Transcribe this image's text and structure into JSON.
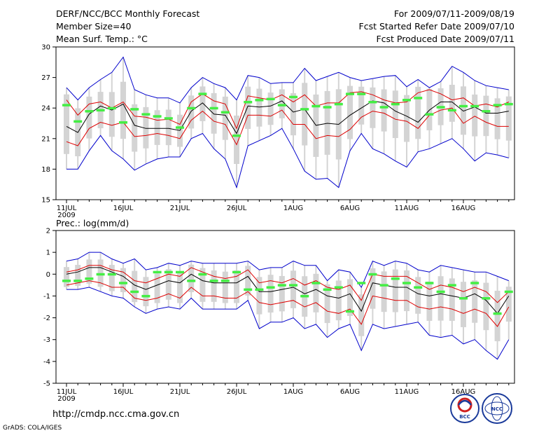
{
  "header": {
    "title": "DERF/NCC/BCC Monthly Forecast",
    "member_size": "Member Size=40",
    "variable_top": "Mean Surf. Temp.: °C",
    "period": "For 2009/07/11-2009/08/19",
    "refer_date": "Fcst Started Refer Date 2009/07/10",
    "produced_date": "Fcst Produced Date 2009/07/11"
  },
  "colors": {
    "envelope": "#0000cc",
    "spread": "#dd0000",
    "mean": "#000000",
    "box": "#d4d4d4",
    "observed": "#44ee44"
  },
  "chart_data": [
    {
      "type": "line",
      "title": "Mean Surf. Temp.: °C",
      "ylim": [
        15,
        30
      ],
      "yticks": [
        "15",
        "18",
        "21",
        "24",
        "27",
        "30"
      ],
      "xtick_labels": [
        "11JUL",
        "16JUL",
        "21JUL",
        "26JUL",
        "1AUG",
        "6AUG",
        "11AUG",
        "16AUG"
      ],
      "year_label": "2009",
      "days": 40,
      "series": [
        {
          "name": "max",
          "values": [
            26.0,
            24.8,
            26.0,
            26.8,
            27.5,
            29.0,
            25.8,
            25.3,
            25.0,
            25.0,
            24.5,
            26.0,
            27.0,
            26.4,
            26.0,
            24.8,
            27.2,
            27.0,
            26.4,
            26.5,
            26.5,
            27.9,
            26.7,
            27.1,
            27.5,
            27.0,
            26.7,
            26.9,
            27.1,
            27.2,
            26.1,
            26.8,
            26.0,
            26.6,
            28.1,
            27.5,
            26.7,
            26.2,
            26.0,
            25.8
          ]
        },
        {
          "name": "upper",
          "values": [
            24.8,
            23.3,
            24.4,
            24.6,
            24.0,
            24.6,
            23.2,
            23.1,
            22.8,
            22.9,
            22.4,
            24.6,
            25.4,
            24.7,
            24.4,
            22.0,
            25.2,
            25.0,
            24.8,
            25.3,
            24.6,
            25.3,
            24.2,
            24.5,
            24.5,
            25.5,
            25.6,
            25.3,
            24.8,
            24.5,
            24.6,
            25.5,
            25.8,
            25.4,
            24.8,
            25.0,
            24.2,
            24.4,
            24.1,
            24.6
          ]
        },
        {
          "name": "mean",
          "values": [
            22.2,
            21.6,
            23.4,
            24.2,
            23.8,
            24.4,
            22.3,
            22.0,
            22.0,
            22.0,
            21.8,
            23.7,
            24.5,
            23.4,
            23.3,
            21.5,
            24.2,
            24.1,
            24.2,
            24.7,
            23.6,
            23.9,
            22.3,
            22.5,
            22.4,
            23.3,
            24.0,
            24.7,
            24.5,
            23.7,
            23.2,
            22.6,
            23.8,
            24.6,
            24.6,
            23.7,
            24.1,
            23.5,
            23.5,
            23.7
          ]
        },
        {
          "name": "lower",
          "values": [
            20.7,
            20.3,
            22.0,
            22.6,
            22.3,
            22.6,
            21.2,
            21.3,
            21.5,
            21.3,
            21.0,
            22.8,
            23.7,
            22.7,
            22.4,
            20.4,
            23.3,
            23.3,
            23.2,
            23.8,
            22.4,
            22.4,
            21.0,
            21.3,
            21.2,
            21.9,
            23.1,
            23.7,
            23.5,
            22.9,
            22.7,
            22.0,
            23.3,
            23.8,
            24.0,
            22.5,
            23.2,
            22.6,
            22.2,
            22.2
          ]
        },
        {
          "name": "min",
          "values": [
            18.0,
            18.0,
            19.8,
            21.3,
            19.8,
            19.0,
            17.9,
            18.5,
            19.0,
            19.2,
            19.2,
            21.0,
            21.5,
            20.0,
            19.0,
            16.2,
            20.3,
            20.8,
            21.3,
            22.0,
            20.0,
            17.8,
            17.0,
            17.1,
            16.2,
            19.8,
            21.5,
            20.0,
            19.5,
            18.8,
            18.2,
            19.7,
            20.0,
            20.5,
            21.0,
            20.0,
            18.8,
            19.6,
            19.4,
            19.1
          ]
        },
        {
          "name": "observed",
          "values": [
            24.3,
            22.7,
            23.7,
            23.8,
            24.0,
            22.6,
            23.9,
            23.4,
            23.2,
            23.0,
            22.1,
            24.0,
            25.4,
            24.0,
            23.6,
            21.3,
            24.6,
            24.8,
            24.9,
            24.3,
            25.1,
            23.9,
            24.2,
            24.1,
            24.4,
            25.4,
            25.4,
            24.6,
            24.1,
            24.4,
            24.8,
            25.0,
            23.4,
            24.1,
            23.8,
            24.2,
            24.2,
            23.7,
            24.3,
            24.4
          ]
        }
      ]
    },
    {
      "type": "line",
      "title": "Prec.: log(mm/d)",
      "ylim": [
        -5,
        2
      ],
      "yticks": [
        "-5",
        "-4",
        "-3",
        "-2",
        "-1",
        "0",
        "1",
        "2"
      ],
      "xtick_labels": [
        "11JUL",
        "16JUL",
        "21JUL",
        "26JUL",
        "1AUG",
        "6AUG",
        "11AUG",
        "16AUG"
      ],
      "year_label": "2009",
      "days": 40,
      "series": [
        {
          "name": "max",
          "values": [
            0.6,
            0.7,
            1.0,
            1.0,
            0.7,
            0.5,
            0.7,
            0.2,
            0.3,
            0.5,
            0.4,
            0.6,
            0.5,
            0.5,
            0.5,
            0.5,
            0.6,
            0.2,
            0.3,
            0.3,
            0.6,
            0.4,
            0.4,
            -0.3,
            0.2,
            0.1,
            -0.6,
            0.6,
            0.4,
            0.6,
            0.5,
            0.2,
            0.1,
            0.4,
            0.3,
            0.2,
            0.1,
            0.1,
            -0.1,
            -0.3
          ]
        },
        {
          "name": "upper",
          "values": [
            0.1,
            0.2,
            0.4,
            0.4,
            0.2,
            0.1,
            -0.3,
            -0.4,
            -0.2,
            0.0,
            -0.1,
            0.3,
            0.1,
            -0.1,
            -0.2,
            -0.1,
            0.2,
            -0.4,
            -0.3,
            -0.4,
            -0.2,
            -0.5,
            -0.3,
            -0.6,
            -0.7,
            -0.5,
            -1.2,
            0.0,
            -0.1,
            -0.1,
            -0.1,
            -0.4,
            -0.7,
            -0.5,
            -0.6,
            -0.8,
            -0.6,
            -0.8,
            -1.3,
            -0.8
          ]
        },
        {
          "name": "mean",
          "values": [
            0.0,
            0.1,
            0.3,
            0.3,
            0.1,
            -0.1,
            -0.5,
            -0.7,
            -0.5,
            -0.3,
            -0.4,
            0.0,
            -0.3,
            -0.4,
            -0.4,
            -0.4,
            -0.1,
            -0.8,
            -0.8,
            -0.7,
            -0.6,
            -0.9,
            -0.7,
            -1.0,
            -1.1,
            -0.9,
            -1.7,
            -0.4,
            -0.5,
            -0.6,
            -0.6,
            -0.9,
            -1.0,
            -0.9,
            -1.0,
            -1.1,
            -0.9,
            -1.2,
            -1.8,
            -1.0
          ]
        },
        {
          "name": "lower",
          "values": [
            -0.5,
            -0.4,
            -0.3,
            -0.4,
            -0.6,
            -0.6,
            -1.1,
            -1.2,
            -1.1,
            -0.9,
            -1.1,
            -0.6,
            -1.0,
            -1.0,
            -1.1,
            -1.1,
            -0.8,
            -1.3,
            -1.4,
            -1.3,
            -1.2,
            -1.5,
            -1.3,
            -1.7,
            -1.8,
            -1.6,
            -2.3,
            -1.0,
            -1.1,
            -1.2,
            -1.2,
            -1.5,
            -1.6,
            -1.5,
            -1.6,
            -1.8,
            -1.6,
            -1.8,
            -2.4,
            -1.5
          ]
        },
        {
          "name": "min",
          "values": [
            -0.7,
            -0.7,
            -0.6,
            -0.8,
            -1.0,
            -1.1,
            -1.5,
            -1.8,
            -1.6,
            -1.5,
            -1.6,
            -1.1,
            -1.6,
            -1.6,
            -1.6,
            -1.6,
            -1.2,
            -2.5,
            -2.2,
            -2.2,
            -2.0,
            -2.5,
            -2.3,
            -2.9,
            -2.5,
            -2.3,
            -3.5,
            -2.3,
            -2.5,
            -2.4,
            -2.3,
            -2.2,
            -2.8,
            -2.9,
            -2.8,
            -3.2,
            -3.0,
            -3.5,
            -3.9,
            -3.0
          ]
        },
        {
          "name": "observed",
          "values": [
            -0.3,
            -0.3,
            -0.2,
            0.0,
            0.0,
            -0.4,
            -0.8,
            -1.0,
            0.1,
            0.1,
            0.1,
            -0.3,
            0.0,
            -0.3,
            -0.3,
            0.1,
            -0.7,
            -0.7,
            -0.6,
            -0.5,
            -0.5,
            -1.0,
            -0.4,
            -0.7,
            -0.6,
            -1.7,
            -0.4,
            0.0,
            -0.5,
            -0.2,
            -0.4,
            -0.6,
            -0.4,
            -0.8,
            -0.5,
            -1.1,
            -0.4,
            -1.1,
            -1.8,
            -0.8
          ]
        }
      ]
    }
  ],
  "footer": {
    "url": "http://cmdp.ncc.cma.gov.cn",
    "credit": "GrADS: COLA/IGES",
    "logo_bcc": "BCC",
    "logo_ncc": "NCC"
  }
}
